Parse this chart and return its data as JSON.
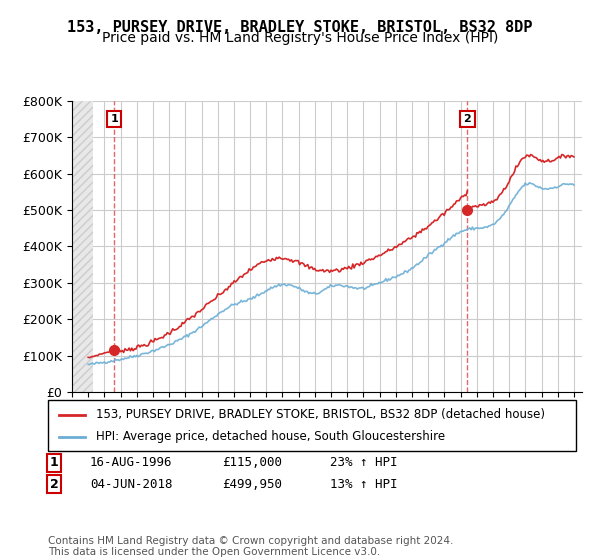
{
  "title": "153, PURSEY DRIVE, BRADLEY STOKE, BRISTOL, BS32 8DP",
  "subtitle": "Price paid vs. HM Land Registry's House Price Index (HPI)",
  "ylim": [
    0,
    800000
  ],
  "yticks": [
    0,
    100000,
    200000,
    300000,
    400000,
    500000,
    600000,
    700000,
    800000
  ],
  "ytick_labels": [
    "£0",
    "£100K",
    "£200K",
    "£300K",
    "£400K",
    "£500K",
    "£600K",
    "£700K",
    "£800K"
  ],
  "xlim_start": 1994.0,
  "xlim_end": 2025.5,
  "hpi_color": "#6baed6",
  "price_color": "#d62728",
  "marker1_year": 1996.6,
  "marker1_price": 115000,
  "marker2_year": 2018.42,
  "marker2_price": 499950,
  "annotation1_label": "1",
  "annotation2_label": "2",
  "legend_label1": "153, PURSEY DRIVE, BRADLEY STOKE, BRISTOL, BS32 8DP (detached house)",
  "legend_label2": "HPI: Average price, detached house, South Gloucestershire",
  "table_row1": [
    "1",
    "16-AUG-1996",
    "£115,000",
    "23% ↑ HPI"
  ],
  "table_row2": [
    "2",
    "04-JUN-2018",
    "£499,950",
    "13% ↑ HPI"
  ],
  "footer": "Contains HM Land Registry data © Crown copyright and database right 2024.\nThis data is licensed under the Open Government Licence v3.0.",
  "bg_color": "#ffffff",
  "hatch_color": "#d0d0d0",
  "grid_color": "#cccccc",
  "title_fontsize": 11,
  "subtitle_fontsize": 10,
  "axis_fontsize": 9,
  "legend_fontsize": 8.5,
  "table_fontsize": 9,
  "footer_fontsize": 7.5
}
